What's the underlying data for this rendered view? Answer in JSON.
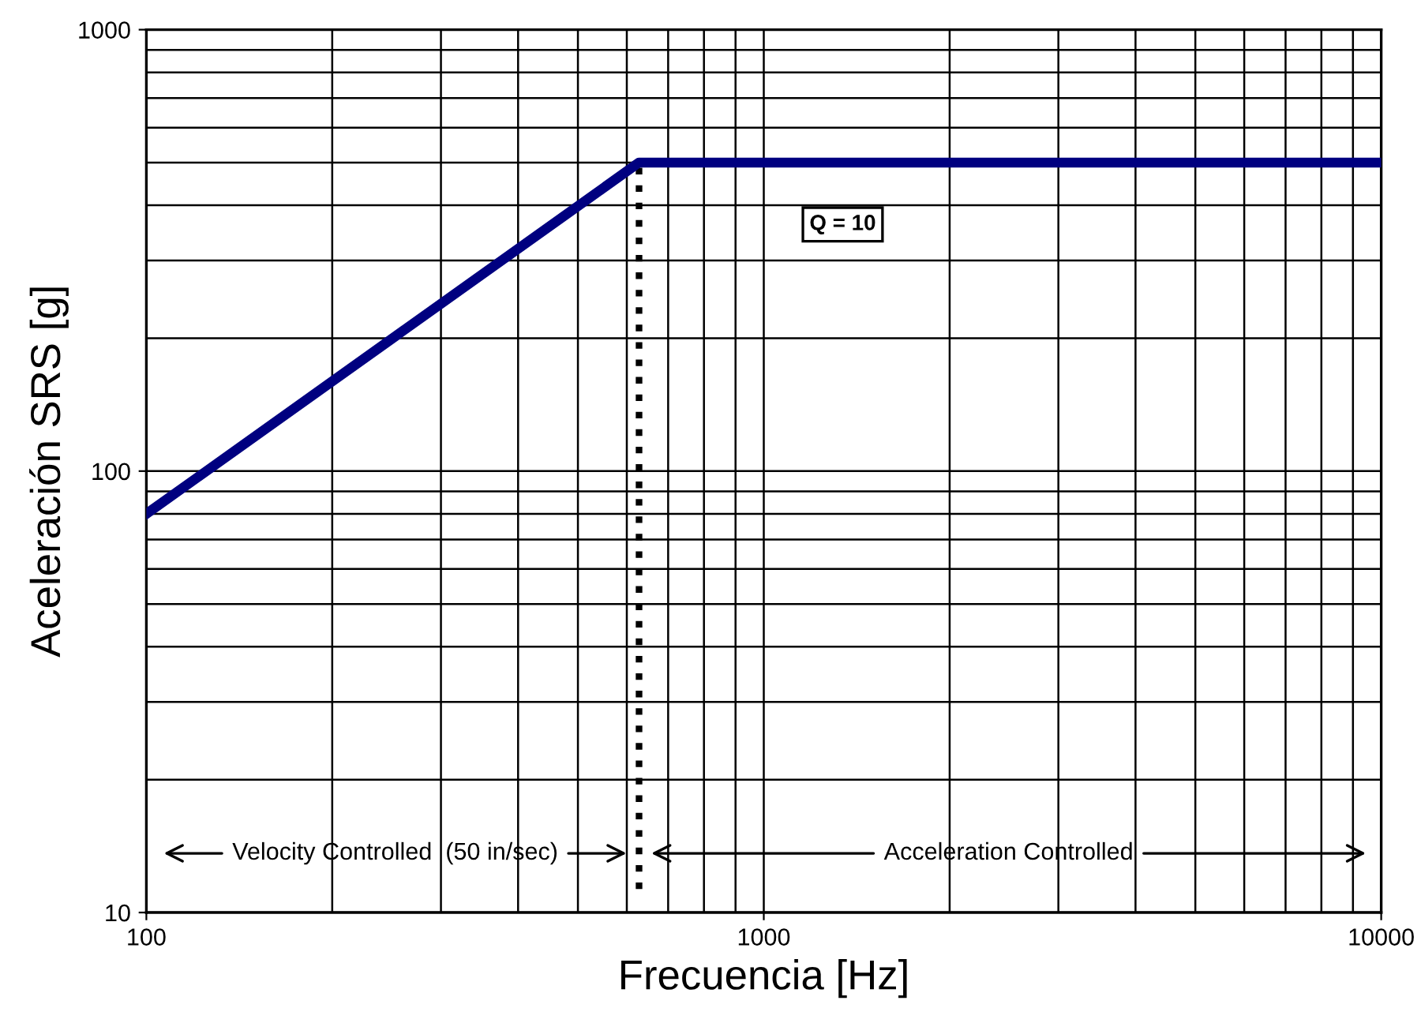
{
  "chart_data": {
    "type": "line",
    "xlabel": "Frecuencia [Hz]",
    "ylabel": "Aceleración SRS [g]",
    "log": "xy",
    "x": [
      100,
      628,
      10000
    ],
    "series": [
      {
        "color": "#000080",
        "values": [
          80,
          500,
          500
        ]
      }
    ],
    "xlim": [
      100,
      10000
    ],
    "xticks": [
      100,
      1000,
      10000
    ],
    "ylim": [
      10,
      1000
    ],
    "yticks": [
      10,
      100,
      1000
    ],
    "grid": true,
    "marker": "none",
    "line_style": "solid",
    "ref_lines": [
      {
        "axis": "x",
        "value": 628,
        "color": "#000000",
        "line_style": "dotted"
      }
    ],
    "annotations": [
      "Q = 10",
      "Velocity Controlled  (50 in/sec)",
      "Acceleration Controlled"
    ]
  }
}
